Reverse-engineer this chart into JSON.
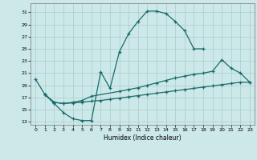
{
  "xlabel": "Humidex (Indice chaleur)",
  "xlim": [
    -0.5,
    23.5
  ],
  "ylim": [
    12.5,
    32.5
  ],
  "yticks": [
    13,
    15,
    17,
    19,
    21,
    23,
    25,
    27,
    29,
    31
  ],
  "xticks": [
    0,
    1,
    2,
    3,
    4,
    5,
    6,
    7,
    8,
    9,
    10,
    11,
    12,
    13,
    14,
    15,
    16,
    17,
    18,
    19,
    20,
    21,
    22,
    23
  ],
  "bg_color": "#cce8e8",
  "grid_color": "#aacccc",
  "line_color": "#1a6b6b",
  "line1_x": [
    0,
    1,
    2,
    3,
    4,
    5,
    6,
    7,
    8,
    9,
    10,
    11,
    12,
    13,
    14,
    15,
    16,
    17,
    18
  ],
  "line1_y": [
    20,
    17.5,
    16,
    14.5,
    13.5,
    13.2,
    13.2,
    21.2,
    18.5,
    24.5,
    27.5,
    29.5,
    31.2,
    31.2,
    30.8,
    29.5,
    28,
    25,
    25
  ],
  "line2_x": [
    1,
    2,
    3,
    4,
    5,
    6,
    9,
    10,
    11,
    12,
    13,
    14,
    15,
    16,
    17,
    18,
    19,
    20,
    21,
    22,
    23
  ],
  "line2_y": [
    17.5,
    16.2,
    16.0,
    16.2,
    16.5,
    17.2,
    18.0,
    18.3,
    18.6,
    19.0,
    19.4,
    19.8,
    20.2,
    20.5,
    20.8,
    21.0,
    21.3,
    23.2,
    21.8,
    21.0,
    19.5
  ],
  "line3_x": [
    1,
    2,
    3,
    4,
    5,
    6,
    7,
    8,
    9,
    10,
    11,
    12,
    13,
    14,
    15,
    16,
    17,
    18,
    19,
    20,
    21,
    22,
    23
  ],
  "line3_y": [
    17.5,
    16.2,
    16.0,
    16.1,
    16.2,
    16.4,
    16.5,
    16.7,
    16.9,
    17.1,
    17.3,
    17.5,
    17.7,
    17.9,
    18.1,
    18.3,
    18.5,
    18.7,
    18.9,
    19.1,
    19.3,
    19.5,
    19.5
  ]
}
